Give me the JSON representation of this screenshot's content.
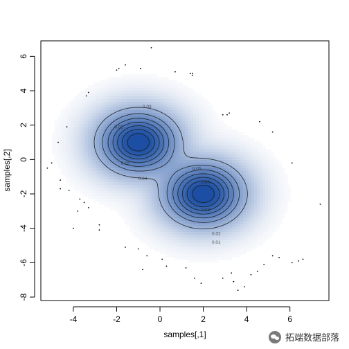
{
  "chart_data": {
    "type": "heatmap",
    "subtype": "2d-density-smoothscatter-with-contours",
    "title": "",
    "xlabel": "samples[,1]",
    "ylabel": "samples[,2]",
    "xlim": [
      -5.5,
      7.8
    ],
    "ylim": [
      -8.2,
      6.9
    ],
    "x_ticks": [
      -4,
      -2,
      0,
      2,
      4,
      6
    ],
    "y_ticks": [
      -8,
      -6,
      -4,
      -2,
      0,
      2,
      4,
      6
    ],
    "grid": false,
    "color_scale": [
      "#ffffff",
      "#08306b"
    ],
    "components": [
      {
        "center": [
          -1.0,
          1.0
        ],
        "sd": [
          1.0,
          1.0
        ],
        "weight": 0.5
      },
      {
        "center": [
          2.0,
          -2.0
        ],
        "sd": [
          1.0,
          1.0
        ],
        "weight": 0.5
      }
    ],
    "contour_levels": [
      0.01,
      0.02,
      0.03,
      0.04,
      0.05,
      0.06,
      0.07,
      0.08
    ],
    "contour_labels": [
      {
        "text": "0.01",
        "x": 2.6,
        "y": -4.9
      },
      {
        "text": "0.02",
        "x": 2.6,
        "y": -4.4
      },
      {
        "text": "0.03",
        "x": 2.1,
        "y": -3.0
      },
      {
        "text": "0.05",
        "x": 1.7,
        "y": -0.6
      },
      {
        "text": "0.06",
        "x": 2.1,
        "y": -1.4
      },
      {
        "text": "0.04",
        "x": -0.8,
        "y": -1.2
      },
      {
        "text": "0.03",
        "x": -1.6,
        "y": -0.3
      },
      {
        "text": "0.02",
        "x": -1.9,
        "y": 1.8
      },
      {
        "text": "0.03",
        "x": -0.6,
        "y": 3.0
      }
    ],
    "outlier_points": [
      [
        -0.4,
        6.5
      ],
      [
        -1.6,
        5.5
      ],
      [
        -2.0,
        5.2
      ],
      [
        -1.9,
        5.3
      ],
      [
        -0.9,
        5.3
      ],
      [
        0.7,
        5.1
      ],
      [
        1.4,
        5.0
      ],
      [
        -3.3,
        3.9
      ],
      [
        -3.4,
        3.7
      ],
      [
        1.5,
        4.9
      ],
      [
        -4.3,
        1.9
      ],
      [
        -4.7,
        1.0
      ],
      [
        -5.2,
        -0.5
      ],
      [
        -5.0,
        -0.2
      ],
      [
        -4.6,
        -1.2
      ],
      [
        -4.2,
        -1.8
      ],
      [
        -4.6,
        -1.7
      ],
      [
        -3.7,
        -2.3
      ],
      [
        -3.5,
        -2.5
      ],
      [
        -3.3,
        -2.8
      ],
      [
        -3.8,
        -3.0
      ],
      [
        -2.8,
        -3.8
      ],
      [
        -4.0,
        -4.0
      ],
      [
        -2.8,
        -4.1
      ],
      [
        -1.6,
        -5.1
      ],
      [
        -1.0,
        -5.2
      ],
      [
        -0.6,
        -5.6
      ],
      [
        0.1,
        -5.8
      ],
      [
        0.3,
        -6.2
      ],
      [
        -0.8,
        -6.4
      ],
      [
        1.2,
        -6.3
      ],
      [
        1.6,
        -6.9
      ],
      [
        1.9,
        -7.2
      ],
      [
        2.9,
        -6.9
      ],
      [
        3.3,
        -6.6
      ],
      [
        3.4,
        -7.1
      ],
      [
        3.9,
        -7.4
      ],
      [
        3.6,
        -7.6
      ],
      [
        4.2,
        -6.7
      ],
      [
        4.5,
        -6.5
      ],
      [
        4.8,
        -6.1
      ],
      [
        5.2,
        -5.6
      ],
      [
        5.5,
        -5.7
      ],
      [
        6.1,
        -6.0
      ],
      [
        6.4,
        -5.9
      ],
      [
        6.6,
        -5.8
      ],
      [
        6.1,
        -0.2
      ],
      [
        7.4,
        -2.6
      ],
      [
        5.2,
        1.6
      ],
      [
        4.6,
        2.2
      ],
      [
        3.1,
        2.6
      ],
      [
        2.9,
        2.6
      ],
      [
        3.2,
        2.7
      ],
      [
        1.5,
        5.0
      ]
    ]
  },
  "watermark": {
    "text": "拓端数据部落",
    "icon": "wechat-icon"
  }
}
